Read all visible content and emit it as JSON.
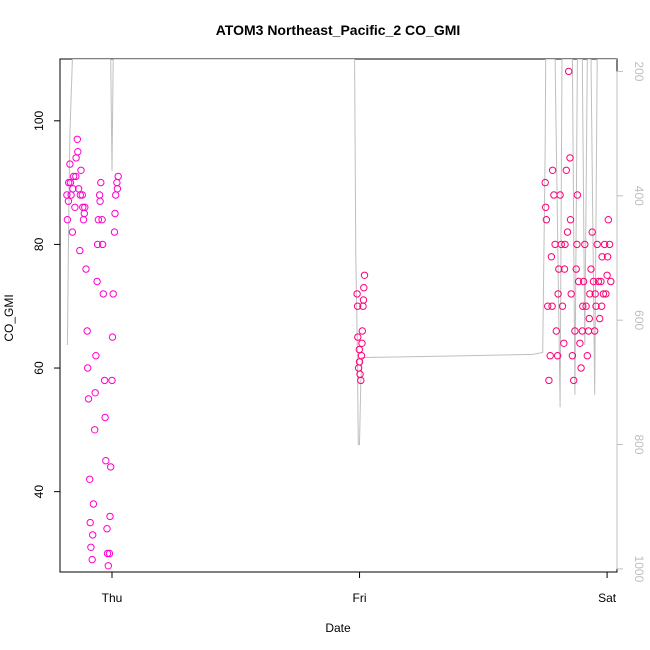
{
  "chart_data": {
    "type": "scatter",
    "title": "ATOM3 Northeast_Pacific_2 CO_GMI",
    "xlabel": "Date",
    "ylabel": "CO_GMI",
    "x_ticks": [
      {
        "label": "Thu",
        "value": 0
      },
      {
        "label": "Fri",
        "value": 1
      },
      {
        "label": "Sat",
        "value": 2
      }
    ],
    "xlim": [
      -0.21,
      2.04
    ],
    "ylim": [
      27,
      110
    ],
    "y_ticks": [
      40,
      60,
      80,
      100
    ],
    "y2_ticks": [
      200,
      400,
      600,
      800,
      1000
    ],
    "y2lim": [
      1005,
      180
    ],
    "y2_inverted": true,
    "grid": false,
    "legend": "none",
    "colors": {
      "points_segment_1": "#ff00cc",
      "points_segment_2": "#ff0077",
      "pressure_line": "#bfbfbf",
      "axes": "#000000",
      "right_axis": "#bfbfbf"
    },
    "series": [
      {
        "values": [
          [
            -0.18,
            84
          ],
          [
            -0.175,
            90
          ],
          [
            -0.17,
            93
          ],
          [
            -0.165,
            88
          ],
          [
            -0.16,
            82
          ],
          [
            -0.155,
            91
          ],
          [
            -0.15,
            86
          ],
          [
            -0.145,
            94
          ],
          [
            -0.14,
            97
          ],
          [
            -0.135,
            89
          ],
          [
            -0.13,
            79
          ],
          [
            -0.125,
            92
          ],
          [
            -0.12,
            88
          ],
          [
            -0.115,
            84
          ],
          [
            -0.11,
            86
          ],
          [
            -0.105,
            76
          ],
          [
            -0.1,
            66
          ],
          [
            -0.095,
            55
          ],
          [
            -0.09,
            42
          ],
          [
            -0.085,
            31
          ],
          [
            -0.08,
            29
          ],
          [
            -0.075,
            38
          ],
          [
            -0.07,
            50
          ],
          [
            -0.065,
            62
          ],
          [
            -0.06,
            74
          ],
          [
            -0.055,
            84
          ],
          [
            -0.05,
            88
          ],
          [
            -0.045,
            90
          ],
          [
            -0.04,
            84
          ],
          [
            -0.035,
            72
          ],
          [
            -0.03,
            58
          ],
          [
            -0.025,
            45
          ],
          [
            -0.02,
            34
          ],
          [
            -0.015,
            28
          ],
          [
            -0.01,
            30
          ],
          [
            -0.005,
            44
          ],
          [
            0.0,
            58
          ],
          [
            0.005,
            72
          ],
          [
            0.01,
            82
          ],
          [
            0.015,
            88
          ],
          [
            0.02,
            90
          ],
          [
            0.025,
            91
          ],
          [
            -0.182,
            88
          ],
          [
            -0.176,
            87
          ],
          [
            -0.168,
            90
          ],
          [
            -0.158,
            89
          ],
          [
            -0.146,
            91
          ],
          [
            -0.138,
            95
          ],
          [
            -0.128,
            88
          ],
          [
            -0.118,
            86
          ],
          [
            -0.112,
            85
          ],
          [
            -0.098,
            60
          ],
          [
            -0.088,
            35
          ],
          [
            -0.078,
            33
          ],
          [
            -0.068,
            56
          ],
          [
            -0.058,
            80
          ],
          [
            -0.048,
            87
          ],
          [
            -0.038,
            80
          ],
          [
            -0.028,
            52
          ],
          [
            -0.018,
            30
          ],
          [
            -0.008,
            36
          ],
          [
            0.002,
            65
          ],
          [
            0.012,
            85
          ],
          [
            0.022,
            89
          ]
        ]
      },
      {
        "values": [
          [
            0.99,
            72
          ],
          [
            0.993,
            65
          ],
          [
            0.996,
            60
          ],
          [
            0.999,
            63
          ],
          [
            1.002,
            59
          ],
          [
            1.005,
            58
          ],
          [
            1.008,
            62
          ],
          [
            1.011,
            66
          ],
          [
            1.014,
            70
          ],
          [
            1.017,
            73
          ],
          [
            1.02,
            75
          ],
          [
            0.992,
            70
          ],
          [
            1.0,
            61
          ],
          [
            1.01,
            64
          ],
          [
            1.016,
            71
          ],
          [
            1.75,
            90
          ],
          [
            1.755,
            84
          ],
          [
            1.76,
            70
          ],
          [
            1.765,
            58
          ],
          [
            1.77,
            62
          ],
          [
            1.775,
            78
          ],
          [
            1.78,
            92
          ],
          [
            1.785,
            88
          ],
          [
            1.79,
            80
          ],
          [
            1.795,
            66
          ],
          [
            1.8,
            62
          ],
          [
            1.805,
            76
          ],
          [
            1.81,
            88
          ],
          [
            1.815,
            80
          ],
          [
            1.82,
            70
          ],
          [
            1.825,
            64
          ],
          [
            1.83,
            80
          ],
          [
            1.835,
            92
          ],
          [
            1.84,
            82
          ],
          [
            1.845,
            108
          ],
          [
            1.85,
            94
          ],
          [
            1.855,
            72
          ],
          [
            1.86,
            62
          ],
          [
            1.865,
            58
          ],
          [
            1.87,
            66
          ],
          [
            1.875,
            76
          ],
          [
            1.88,
            88
          ],
          [
            1.885,
            74
          ],
          [
            1.89,
            64
          ],
          [
            1.895,
            60
          ],
          [
            1.9,
            66
          ],
          [
            1.905,
            74
          ],
          [
            1.91,
            80
          ],
          [
            1.915,
            70
          ],
          [
            1.92,
            62
          ],
          [
            1.925,
            66
          ],
          [
            1.93,
            72
          ],
          [
            1.935,
            76
          ],
          [
            1.94,
            82
          ],
          [
            1.945,
            74
          ],
          [
            1.95,
            66
          ],
          [
            1.955,
            70
          ],
          [
            1.96,
            80
          ],
          [
            1.965,
            74
          ],
          [
            1.97,
            68
          ],
          [
            1.975,
            74
          ],
          [
            1.98,
            78
          ],
          [
            1.985,
            72
          ],
          [
            1.99,
            80
          ],
          [
            1.995,
            72
          ],
          [
            2.0,
            75
          ],
          [
            2.005,
            84
          ],
          [
            2.01,
            80
          ],
          [
            2.015,
            74
          ],
          [
            1.752,
            86
          ],
          [
            1.778,
            70
          ],
          [
            1.802,
            72
          ],
          [
            1.828,
            76
          ],
          [
            1.852,
            84
          ],
          [
            1.878,
            80
          ],
          [
            1.902,
            70
          ],
          [
            1.928,
            68
          ],
          [
            1.952,
            72
          ],
          [
            1.978,
            70
          ],
          [
            2.002,
            78
          ]
        ]
      }
    ],
    "pressure_series": {
      "axis": "right",
      "values": [
        [
          -0.18,
          640
        ],
        [
          -0.175,
          440
        ],
        [
          -0.17,
          300
        ],
        [
          -0.16,
          180
        ],
        [
          -0.15,
          180
        ],
        [
          -0.14,
          180
        ],
        [
          -0.12,
          180
        ],
        [
          -0.1,
          180
        ],
        [
          -0.08,
          180
        ],
        [
          -0.06,
          180
        ],
        [
          -0.04,
          180
        ],
        [
          -0.02,
          180
        ],
        [
          -0.005,
          180
        ],
        [
          0.0,
          360
        ],
        [
          0.005,
          180
        ],
        [
          0.6,
          180
        ],
        [
          0.98,
          180
        ],
        [
          0.985,
          500
        ],
        [
          0.99,
          620
        ],
        [
          0.995,
          800
        ],
        [
          1.0,
          800
        ],
        [
          1.005,
          700
        ],
        [
          1.01,
          660
        ],
        [
          1.02,
          660
        ],
        [
          1.45,
          657
        ],
        [
          1.7,
          655
        ],
        [
          1.74,
          652
        ],
        [
          1.75,
          320
        ],
        [
          1.752,
          180
        ],
        [
          1.76,
          180
        ],
        [
          1.79,
          180
        ],
        [
          1.81,
          740
        ],
        [
          1.818,
          180
        ],
        [
          1.84,
          180
        ],
        [
          1.86,
          180
        ],
        [
          1.87,
          720
        ],
        [
          1.88,
          180
        ],
        [
          1.9,
          180
        ],
        [
          1.91,
          640
        ],
        [
          1.92,
          180
        ],
        [
          1.935,
          180
        ],
        [
          1.95,
          720
        ],
        [
          1.96,
          180
        ],
        [
          1.98,
          180
        ],
        [
          2.04,
          180
        ]
      ]
    }
  }
}
